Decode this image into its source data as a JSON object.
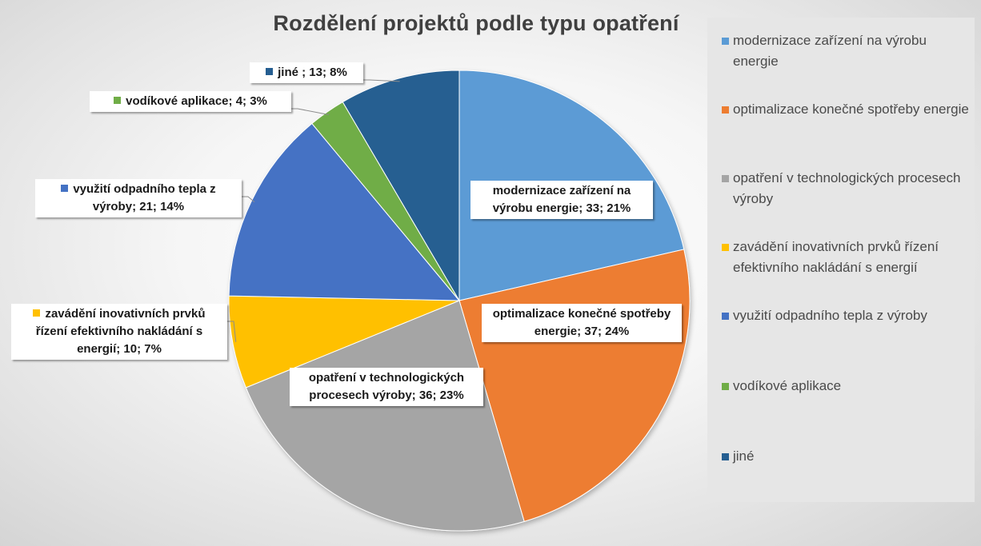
{
  "chart_data": {
    "type": "pie",
    "title": "Rozdělení projektů podle typu opatření",
    "slices": [
      {
        "name": "modernizace zařízení na výrobu energie",
        "value": 33,
        "percent": "21%",
        "label": "modernizace zařízení na výrobu energie; 33; 21%",
        "color": "#5B9BD5"
      },
      {
        "name": "optimalizace konečné spotřeby energie",
        "value": 37,
        "percent": "24%",
        "label": "optimalizace konečné spotřeby energie; 37; 24%",
        "color": "#ED7D31"
      },
      {
        "name": "opatření v technologických procesech výroby",
        "value": 36,
        "percent": "23%",
        "label": "opatření v technologických procesech výroby; 36; 23%",
        "color": "#A5A5A5"
      },
      {
        "name": "zavádění inovativních prvků řízení efektivního nakládání s energií",
        "value": 10,
        "percent": "7%",
        "label": "zavádění inovativních prvků řízení efektivního nakládání s energií; 10; 7%",
        "color": "#FFC000"
      },
      {
        "name": "využití odpadního tepla z výroby",
        "value": 21,
        "percent": "14%",
        "label": "využití odpadního tepla z výroby; 21; 14%",
        "color": "#4472C4"
      },
      {
        "name": "vodíkové aplikace",
        "value": 4,
        "percent": "3%",
        "label": "vodíkové aplikace; 4; 3%",
        "color": "#70AD47"
      },
      {
        "name": "jiné",
        "value": 13,
        "percent": "8%",
        "label": "jiné ; 13; 8%",
        "color": "#255E91"
      }
    ],
    "legend_position": "right",
    "legend": [
      "modernizace zařízení na výrobu energie",
      "optimalizace konečné spotřeby energie",
      "opatření v technologických procesech výroby",
      "zavádění inovativních prvků řízení efektivního nakládání s energií",
      "využití odpadního tepla z výroby",
      "vodíkové aplikace",
      "jiné"
    ]
  }
}
